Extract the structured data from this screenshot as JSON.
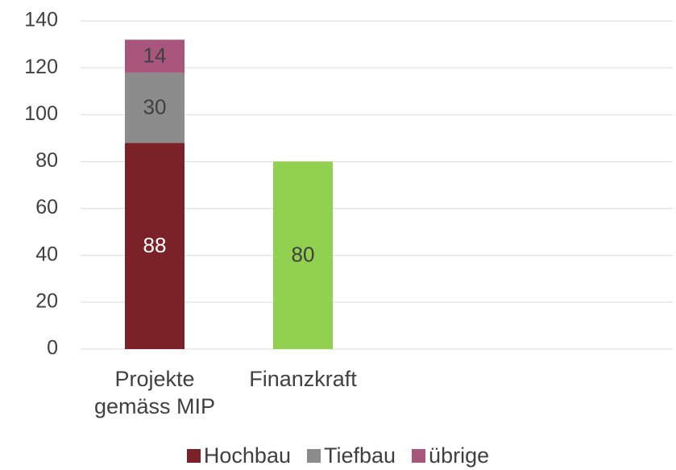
{
  "chart_data": {
    "type": "stacked_bar",
    "categories": [
      "Projekte gemäss MIP",
      "Finanzkraft"
    ],
    "series": [
      {
        "name": "Hochbau",
        "color": "#7b2228",
        "label_color": "#ffffff",
        "values": [
          88,
          null
        ]
      },
      {
        "name": "Tiefbau",
        "color": "#8c8c8c",
        "label_color": "#404040",
        "values": [
          30,
          null
        ]
      },
      {
        "name": "übrige",
        "color": "#a9567f",
        "label_color": "#404040",
        "values": [
          14,
          null
        ]
      },
      {
        "color": "#92d050",
        "label_color": "#404040",
        "values": [
          null,
          80
        ]
      }
    ],
    "ylim": [
      0,
      140
    ],
    "yticks": [
      0,
      20,
      40,
      60,
      80,
      100,
      120,
      140
    ],
    "grid": true,
    "legend": "bottom"
  }
}
